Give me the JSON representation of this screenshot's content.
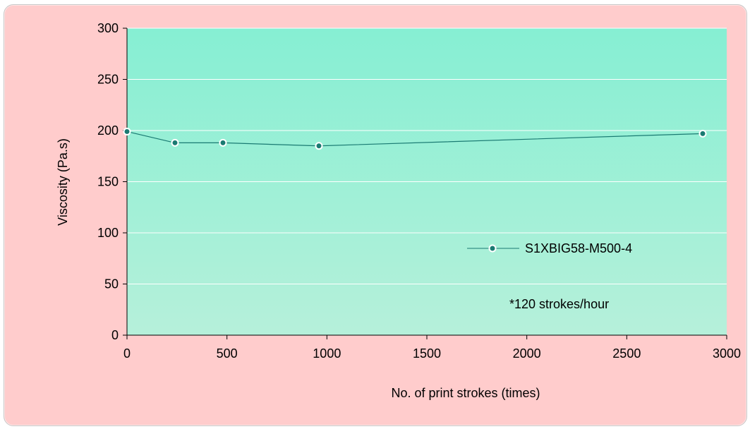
{
  "chart_data": {
    "type": "line",
    "title": "",
    "xlabel": "No. of print strokes (times)",
    "ylabel": "Viscosity (Pa.s)",
    "xlim": [
      0,
      3000
    ],
    "ylim": [
      0,
      300
    ],
    "x_ticks": [
      0,
      500,
      1000,
      1500,
      2000,
      2500,
      3000
    ],
    "y_ticks": [
      0,
      50,
      100,
      150,
      200,
      250,
      300
    ],
    "grid": "horizontal",
    "legend_position": "center-right",
    "series": [
      {
        "name": "S1XBIG58-M500-4",
        "color": "#1a7a72",
        "points": [
          {
            "x": 0,
            "y": 199
          },
          {
            "x": 240,
            "y": 188
          },
          {
            "x": 480,
            "y": 188
          },
          {
            "x": 960,
            "y": 185
          },
          {
            "x": 2880,
            "y": 197
          }
        ]
      }
    ],
    "annotation": "*120 strokes/hour"
  },
  "colors": {
    "frame_background": "#ffcccc",
    "plot_gradient_top": "#86efd3",
    "plot_gradient_bottom": "#b6f0da",
    "gridline": "#ffffff",
    "series_line": "#1a7a72"
  }
}
